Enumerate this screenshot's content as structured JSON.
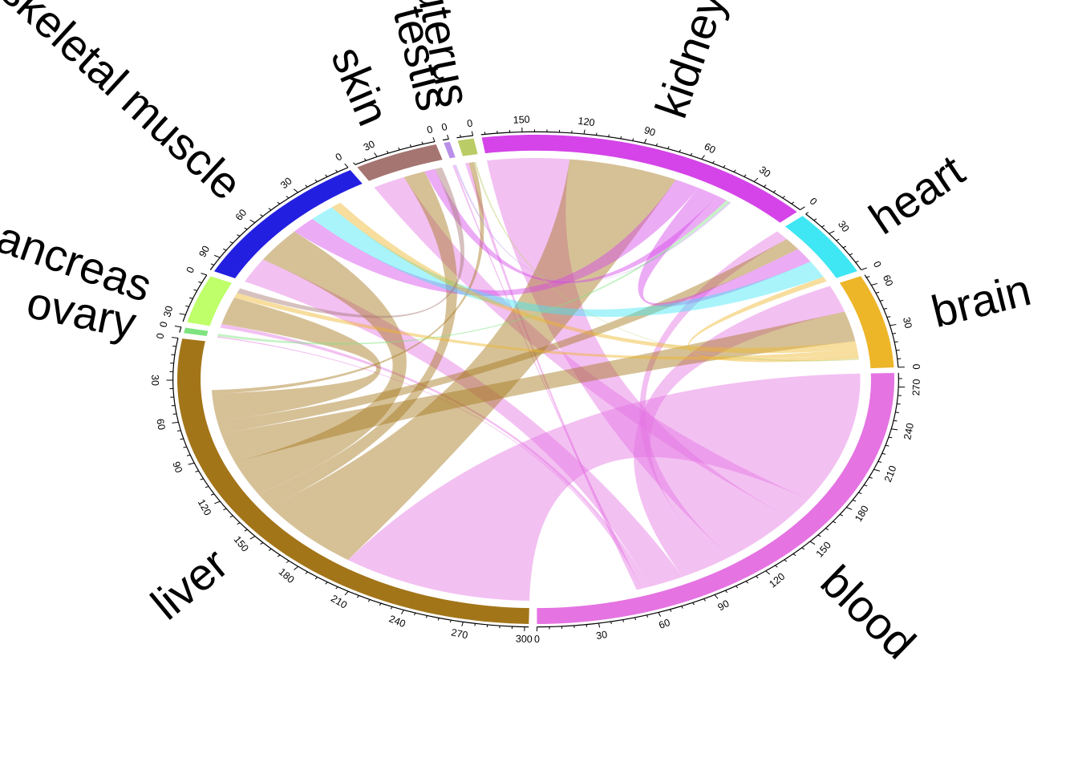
{
  "chart_data": {
    "type": "chord",
    "title": "",
    "sectors": [
      {
        "name": "blood",
        "total": 280,
        "color": "#E573E2"
      },
      {
        "name": "liver",
        "total": 302,
        "color": "#A37519"
      },
      {
        "name": "ovary",
        "total": 4,
        "color": "#7FE37F"
      },
      {
        "name": "pancreas",
        "total": 35,
        "color": "#BEFF6A"
      },
      {
        "name": "skeletal muscle",
        "total": 100,
        "color": "#231FE0"
      },
      {
        "name": "skin",
        "total": 42,
        "color": "#A57571"
      },
      {
        "name": "testis",
        "total": 3,
        "color": "#B98FE8"
      },
      {
        "name": "uterus",
        "total": 8,
        "color": "#BACC66"
      },
      {
        "name": "kidney",
        "total": 170,
        "color": "#D444E8"
      },
      {
        "name": "heart",
        "total": 48,
        "color": "#3FE6F3"
      },
      {
        "name": "brain",
        "total": 68,
        "color": "#EDB528"
      }
    ],
    "links": [
      {
        "from": "blood",
        "to": "liver",
        "value": 105
      },
      {
        "from": "blood",
        "to": "skin",
        "value": 18
      },
      {
        "from": "blood",
        "to": "kidney",
        "value": 45
      },
      {
        "from": "blood",
        "to": "heart",
        "value": 8
      },
      {
        "from": "blood",
        "to": "brain",
        "value": 22
      },
      {
        "from": "blood",
        "to": "skeletal muscle",
        "value": 20
      },
      {
        "from": "blood",
        "to": "pancreas",
        "value": 3
      },
      {
        "from": "blood",
        "to": "ovary",
        "value": 1
      },
      {
        "from": "blood",
        "to": "testis",
        "value": 1
      },
      {
        "from": "blood",
        "to": "uterus",
        "value": 2
      },
      {
        "from": "liver",
        "to": "kidney",
        "value": 60
      },
      {
        "from": "liver",
        "to": "skin",
        "value": 12
      },
      {
        "from": "liver",
        "to": "skeletal muscle",
        "value": 28
      },
      {
        "from": "liver",
        "to": "brain",
        "value": 24
      },
      {
        "from": "liver",
        "to": "heart",
        "value": 10
      },
      {
        "from": "liver",
        "to": "pancreas",
        "value": 22
      },
      {
        "from": "liver",
        "to": "uterus",
        "value": 3
      },
      {
        "from": "kidney",
        "to": "skeletal muscle",
        "value": 14
      },
      {
        "from": "kidney",
        "to": "heart",
        "value": 12
      },
      {
        "from": "kidney",
        "to": "skin",
        "value": 6
      },
      {
        "from": "heart",
        "to": "skeletal muscle",
        "value": 14
      },
      {
        "from": "brain",
        "to": "skeletal muscle",
        "value": 6
      },
      {
        "from": "brain",
        "to": "pancreas",
        "value": 4
      },
      {
        "from": "brain",
        "to": "heart",
        "value": 4
      },
      {
        "from": "skin",
        "to": "pancreas",
        "value": 4
      },
      {
        "from": "ovary",
        "to": "kidney",
        "value": 2
      },
      {
        "from": "testis",
        "to": "kidney",
        "value": 1
      },
      {
        "from": "uterus",
        "to": "brain",
        "value": 1
      }
    ],
    "tick_step": 30,
    "grid": false,
    "legend": "none"
  }
}
